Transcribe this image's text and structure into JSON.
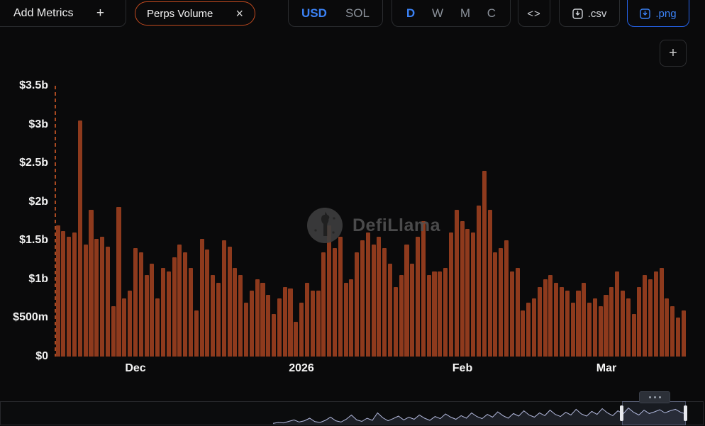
{
  "toolbar": {
    "add_metrics": {
      "label": "Add Metrics",
      "icon": "+"
    },
    "metric_pill": {
      "label": "Perps Volume",
      "close": "×"
    },
    "currency_toggle": {
      "options": [
        "USD",
        "SOL"
      ],
      "selected": "USD"
    },
    "interval_toggle": {
      "options": [
        "D",
        "W",
        "M",
        "C"
      ],
      "selected": "D"
    },
    "embed_label": "<>",
    "csv_label": ".csv",
    "png_label": ".png"
  },
  "chart": {
    "watermark": "DefiLlama",
    "zoom_button": "+"
  },
  "chart_data": {
    "type": "bar",
    "title": "Perps Volume",
    "unit": "USD",
    "bar_color": "#8e3a1d",
    "accent_blue": "#3b82f6",
    "pill_orange": "#c14a1f",
    "ylim_billions": [
      0,
      3.5
    ],
    "y_ticks": [
      {
        "label": "$0",
        "value": 0
      },
      {
        "label": "$500m",
        "value": 0.5
      },
      {
        "label": "$1b",
        "value": 1
      },
      {
        "label": "$1.5b",
        "value": 1.5
      },
      {
        "label": "$2b",
        "value": 2
      },
      {
        "label": "$2.5b",
        "value": 2.5
      },
      {
        "label": "$3b",
        "value": 3
      },
      {
        "label": "$3.5b",
        "value": 3.5
      }
    ],
    "x_ticks": [
      {
        "label": "Dec",
        "index": 14
      },
      {
        "label": "2026",
        "index": 44
      },
      {
        "label": "Feb",
        "index": 73
      },
      {
        "label": "Mar",
        "index": 99
      }
    ],
    "values_billions": [
      1.7,
      1.62,
      1.55,
      1.6,
      3.05,
      1.45,
      1.9,
      1.52,
      1.55,
      1.42,
      0.65,
      1.93,
      0.75,
      0.85,
      1.4,
      1.35,
      1.05,
      1.2,
      0.75,
      1.15,
      1.1,
      1.28,
      1.45,
      1.35,
      1.15,
      0.6,
      1.52,
      1.38,
      1.05,
      0.95,
      1.5,
      1.42,
      1.15,
      1.05,
      0.7,
      0.85,
      1.0,
      0.95,
      0.8,
      0.55,
      0.75,
      0.9,
      0.88,
      0.45,
      0.7,
      0.95,
      0.85,
      0.85,
      1.35,
      1.7,
      1.4,
      1.55,
      0.95,
      1.0,
      1.35,
      1.5,
      1.6,
      1.45,
      1.55,
      1.4,
      1.2,
      0.9,
      1.05,
      1.45,
      1.2,
      1.55,
      1.75,
      1.05,
      1.1,
      1.1,
      1.15,
      1.6,
      1.9,
      1.75,
      1.65,
      1.6,
      1.95,
      2.4,
      1.9,
      1.35,
      1.4,
      1.5,
      1.1,
      1.15,
      0.6,
      0.7,
      0.75,
      0.9,
      1.0,
      1.05,
      0.95,
      0.9,
      0.85,
      0.7,
      0.85,
      0.95,
      0.7,
      0.75,
      0.65,
      0.8,
      0.9,
      1.1,
      0.85,
      0.75,
      0.55,
      0.9,
      1.05,
      1.0,
      1.1,
      1.15,
      0.75,
      0.65,
      0.5,
      0.6
    ],
    "brush": {
      "values_normalized": [
        0.06,
        0.1,
        0.08,
        0.15,
        0.22,
        0.12,
        0.18,
        0.3,
        0.14,
        0.1,
        0.2,
        0.35,
        0.18,
        0.12,
        0.25,
        0.45,
        0.22,
        0.15,
        0.3,
        0.2,
        0.55,
        0.32,
        0.18,
        0.28,
        0.4,
        0.22,
        0.35,
        0.25,
        0.45,
        0.3,
        0.2,
        0.38,
        0.28,
        0.5,
        0.35,
        0.25,
        0.42,
        0.3,
        0.55,
        0.38,
        0.28,
        0.48,
        0.35,
        0.6,
        0.42,
        0.3,
        0.52,
        0.4,
        0.65,
        0.45,
        0.35,
        0.55,
        0.42,
        0.68,
        0.48,
        0.38,
        0.58,
        0.45,
        0.72,
        0.5,
        0.4,
        0.62,
        0.48,
        0.75,
        0.55,
        0.42,
        0.65,
        0.5,
        0.78,
        0.58,
        0.45,
        0.68,
        0.52,
        0.6,
        0.7,
        0.55,
        0.65,
        0.72,
        0.58,
        0.5
      ]
    }
  }
}
